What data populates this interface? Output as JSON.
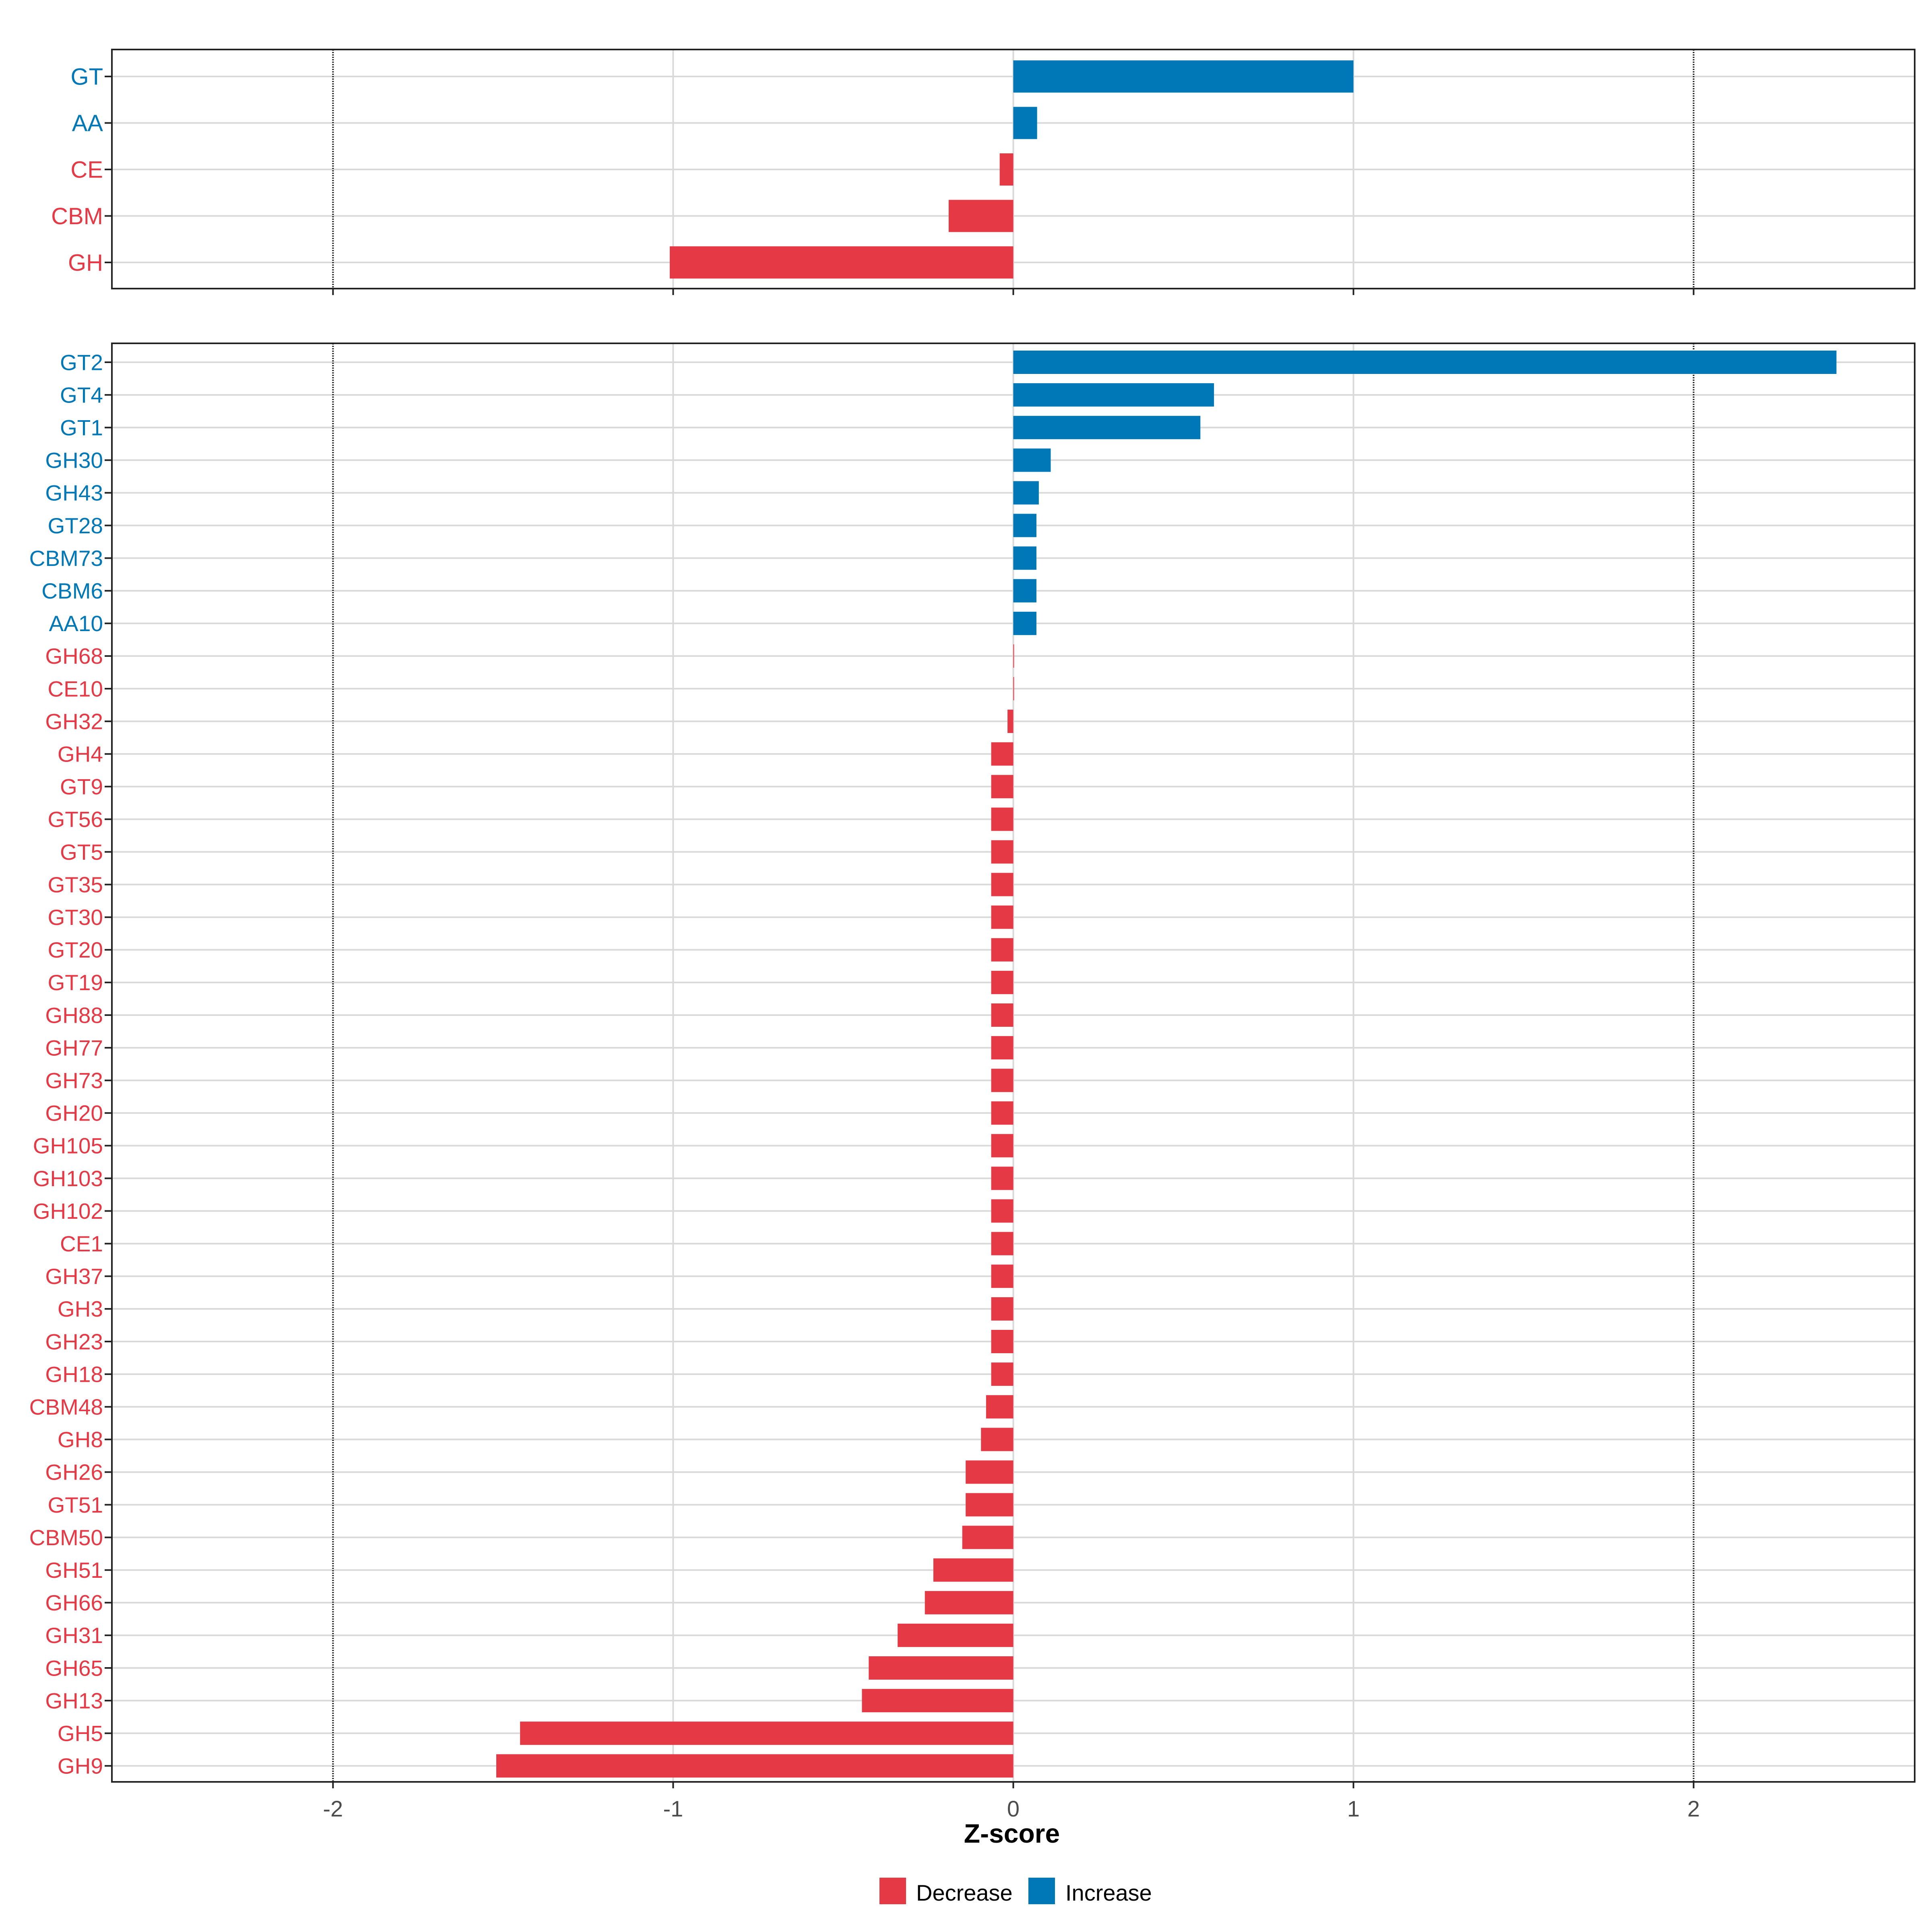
{
  "chart_data": [
    {
      "type": "bar",
      "orientation": "horizontal",
      "panel": "top",
      "categories": [
        "GT",
        "AA",
        "CE",
        "CBM",
        "GH"
      ],
      "values": [
        1.0,
        0.07,
        -0.04,
        -0.19,
        -1.01
      ],
      "xlim": [
        -2.65,
        2.65
      ],
      "reference_lines": [
        -2,
        2
      ],
      "grid": true
    },
    {
      "type": "bar",
      "orientation": "horizontal",
      "panel": "bottom",
      "categories": [
        "GT2",
        "GT4",
        "GT1",
        "GH30",
        "GH43",
        "GT28",
        "CBM73",
        "CBM6",
        "AA10",
        "GH68",
        "CE10",
        "GH32",
        "GH4",
        "GT9",
        "GT56",
        "GT5",
        "GT35",
        "GT30",
        "GT20",
        "GT19",
        "GH88",
        "GH77",
        "GH73",
        "GH20",
        "GH105",
        "GH103",
        "GH102",
        "CE1",
        "GH37",
        "GH3",
        "GH23",
        "GH18",
        "CBM48",
        "GH8",
        "GH26",
        "GT51",
        "CBM50",
        "GH51",
        "GH66",
        "GH31",
        "GH65",
        "GH13",
        "GH5",
        "GH9"
      ],
      "values": [
        2.42,
        0.59,
        0.55,
        0.11,
        0.075,
        0.068,
        0.068,
        0.068,
        0.068,
        0.0,
        0.0,
        -0.017,
        -0.065,
        -0.065,
        -0.065,
        -0.065,
        -0.065,
        -0.065,
        -0.065,
        -0.065,
        -0.065,
        -0.065,
        -0.065,
        -0.065,
        -0.065,
        -0.065,
        -0.065,
        -0.065,
        -0.065,
        -0.065,
        -0.065,
        -0.065,
        -0.08,
        -0.095,
        -0.14,
        -0.14,
        -0.15,
        -0.235,
        -0.26,
        -0.34,
        -0.425,
        -0.445,
        -1.45,
        -1.52
      ],
      "xlim": [
        -2.65,
        2.65
      ],
      "reference_lines": [
        -2,
        2
      ],
      "grid": true
    }
  ],
  "axis": {
    "xlabel": "Z-score",
    "ticks": [
      -2,
      -1,
      0,
      1,
      2
    ],
    "tick_labels": [
      "-2",
      "-1",
      "0",
      "1",
      "2"
    ]
  },
  "legend": {
    "placement": "bottom-center",
    "items": [
      {
        "label": "Decrease",
        "color": "#e63946"
      },
      {
        "label": "Increase",
        "color": "#0077b6"
      }
    ]
  },
  "colors": {
    "decrease": "#e63946",
    "increase": "#0077b6",
    "grid": "#d9d9d9",
    "reference": "#222222",
    "frame": "#222222"
  }
}
